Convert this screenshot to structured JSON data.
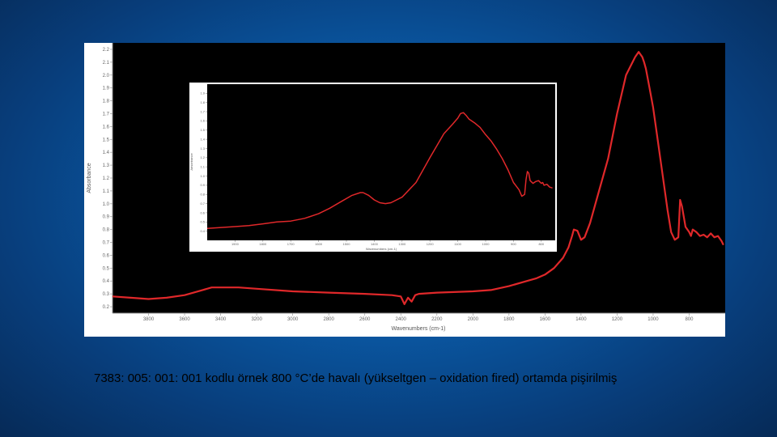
{
  "caption": "7383: 005: 001: 001 kodlu örnek 800 °C’de havalı (yükseltgen – oxidation fired) ortamda pişirilmiş",
  "colors": {
    "line": "#e0282a",
    "plot_bg": "#000000",
    "frame_bg": "#ffffff",
    "slide_bg": "#0a5aa6"
  },
  "chart_data": [
    {
      "type": "line",
      "xlabel": "Wavenumbers (cm-1)",
      "ylabel": "Absorbance",
      "xlim": [
        4000,
        600
      ],
      "ylim": [
        0.15,
        2.25
      ],
      "x_reversed": true,
      "grid": false,
      "x_ticks": [
        3800,
        3600,
        3400,
        3200,
        3000,
        2800,
        2600,
        2400,
        2200,
        2000,
        1800,
        1600,
        1400,
        1200,
        1000,
        800
      ],
      "x_tick_labels": [
        "3800",
        "3600",
        "3400",
        "3200",
        "3000",
        "2800",
        "2600",
        "2400",
        "2200",
        "2000",
        "1800",
        "1600",
        "1400",
        "1200",
        "1000",
        "800"
      ],
      "y_ticks": [
        0.2,
        0.3,
        0.4,
        0.5,
        0.6,
        0.7,
        0.8,
        0.9,
        1.0,
        1.1,
        1.2,
        1.3,
        1.4,
        1.5,
        1.6,
        1.7,
        1.8,
        1.9,
        2.0,
        2.1,
        2.2
      ],
      "y_tick_labels": [
        "0.2",
        "0.3",
        "0.4",
        "0.5",
        "0.6",
        "0.7",
        "0.8",
        "0.9",
        "1.0",
        "1.1",
        "1.2",
        "1.3",
        "1.4",
        "1.5",
        "1.6",
        "1.7",
        "1.8",
        "1.9",
        "2.0",
        "2.1",
        "2.2"
      ],
      "series": [
        {
          "x": [
            4000,
            3900,
            3800,
            3700,
            3600,
            3500,
            3450,
            3400,
            3300,
            3200,
            3000,
            2800,
            2600,
            2450,
            2400,
            2380,
            2360,
            2340,
            2320,
            2300,
            2200,
            2000,
            1900,
            1800,
            1700,
            1650,
            1600,
            1550,
            1500,
            1470,
            1450,
            1440,
            1420,
            1400,
            1380,
            1350,
            1300,
            1250,
            1200,
            1150,
            1100,
            1080,
            1060,
            1050,
            1040,
            1020,
            1000,
            980,
            950,
            920,
            900,
            880,
            860,
            850,
            840,
            830,
            820,
            800,
            790,
            780,
            760,
            740,
            720,
            700,
            680,
            660,
            640,
            620,
            610
          ],
          "y": [
            0.28,
            0.27,
            0.26,
            0.27,
            0.29,
            0.33,
            0.35,
            0.35,
            0.35,
            0.34,
            0.32,
            0.31,
            0.3,
            0.29,
            0.28,
            0.22,
            0.27,
            0.24,
            0.29,
            0.3,
            0.31,
            0.32,
            0.33,
            0.36,
            0.4,
            0.42,
            0.45,
            0.5,
            0.58,
            0.66,
            0.75,
            0.8,
            0.79,
            0.72,
            0.74,
            0.85,
            1.1,
            1.35,
            1.7,
            2.0,
            2.14,
            2.18,
            2.14,
            2.1,
            2.05,
            1.9,
            1.75,
            1.55,
            1.25,
            0.95,
            0.78,
            0.72,
            0.74,
            1.03,
            0.98,
            0.9,
            0.82,
            0.78,
            0.75,
            0.8,
            0.78,
            0.75,
            0.76,
            0.74,
            0.77,
            0.74,
            0.75,
            0.71,
            0.68
          ]
        }
      ]
    },
    {
      "type": "line",
      "xlabel": "Wavenumbers (cm-1)",
      "ylabel": "Absorbance",
      "xlim": [
        2000,
        750
      ],
      "ylim": [
        0.3,
        2.0
      ],
      "x_reversed": true,
      "grid": false,
      "x_ticks": [
        1900,
        1800,
        1700,
        1600,
        1500,
        1400,
        1300,
        1200,
        1100,
        1000,
        900,
        800
      ],
      "x_tick_labels": [
        "1900",
        "1800",
        "1700",
        "1600",
        "1500",
        "1400",
        "1300",
        "1200",
        "1100",
        "1000",
        "900",
        "800"
      ],
      "y_ticks": [
        0.4,
        0.5,
        0.6,
        0.7,
        0.8,
        0.9,
        1.0,
        1.1,
        1.2,
        1.3,
        1.4,
        1.5,
        1.6,
        1.7,
        1.8,
        1.9
      ],
      "y_tick_labels": [
        "0.4",
        "0.5",
        "0.6",
        "0.7",
        "0.8",
        "0.9",
        "1.0",
        "1.1",
        "1.2",
        "1.3",
        "1.4",
        "1.5",
        "1.6",
        "1.7",
        "1.8",
        "1.9"
      ],
      "series": [
        {
          "x": [
            2000,
            1950,
            1900,
            1850,
            1800,
            1750,
            1700,
            1650,
            1600,
            1560,
            1520,
            1480,
            1450,
            1440,
            1420,
            1400,
            1380,
            1360,
            1340,
            1300,
            1250,
            1200,
            1150,
            1120,
            1100,
            1090,
            1080,
            1070,
            1060,
            1040,
            1020,
            1000,
            980,
            960,
            940,
            920,
            900,
            880,
            870,
            860,
            855,
            850,
            845,
            840,
            830,
            820,
            810,
            800,
            795,
            790,
            780,
            770,
            760
          ],
          "y": [
            0.43,
            0.44,
            0.45,
            0.46,
            0.48,
            0.5,
            0.51,
            0.54,
            0.59,
            0.65,
            0.72,
            0.79,
            0.82,
            0.82,
            0.79,
            0.74,
            0.71,
            0.7,
            0.71,
            0.77,
            0.93,
            1.2,
            1.46,
            1.56,
            1.63,
            1.68,
            1.69,
            1.66,
            1.62,
            1.58,
            1.53,
            1.45,
            1.38,
            1.29,
            1.19,
            1.07,
            0.93,
            0.85,
            0.78,
            0.8,
            0.96,
            1.05,
            1.03,
            0.95,
            0.92,
            0.94,
            0.95,
            0.92,
            0.93,
            0.9,
            0.91,
            0.88,
            0.87
          ]
        }
      ]
    }
  ]
}
